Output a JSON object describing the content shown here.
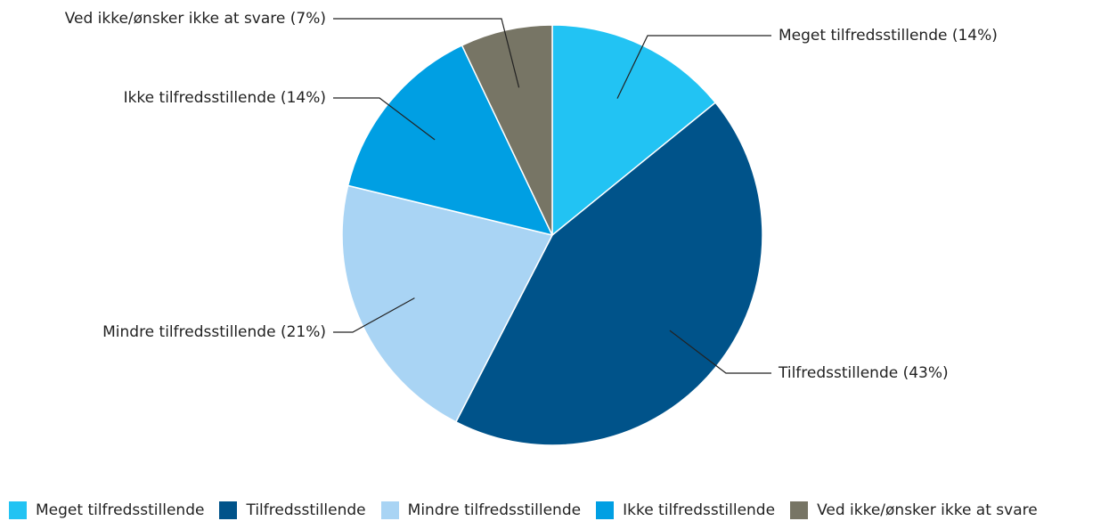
{
  "chart_data": {
    "type": "pie",
    "title": "",
    "slices": [
      {
        "label": "Meget tilfredsstillende",
        "value": 14,
        "percent_label": "Meget tilfredsstillende (14%)",
        "color": "#22c3f3"
      },
      {
        "label": "Tilfredsstillende",
        "value": 43,
        "percent_label": "Tilfredsstillende (43%)",
        "color": "#00538a"
      },
      {
        "label": "Mindre tilfredsstillende",
        "value": 21,
        "percent_label": "Mindre tilfredsstillende (21%)",
        "color": "#a9d4f4"
      },
      {
        "label": "Ikke tilfredsstillende",
        "value": 14,
        "percent_label": "Ikke tilfredsstillende (14%)",
        "color": "#009fe3"
      },
      {
        "label": "Ved ikke/ønsker ikke at svare",
        "value": 7,
        "percent_label": "Ved ikke/ønsker ikke at svare (7%)",
        "color": "#777565"
      }
    ],
    "legend_position": "bottom",
    "start_angle": "12 o'clock",
    "direction": "clockwise"
  }
}
